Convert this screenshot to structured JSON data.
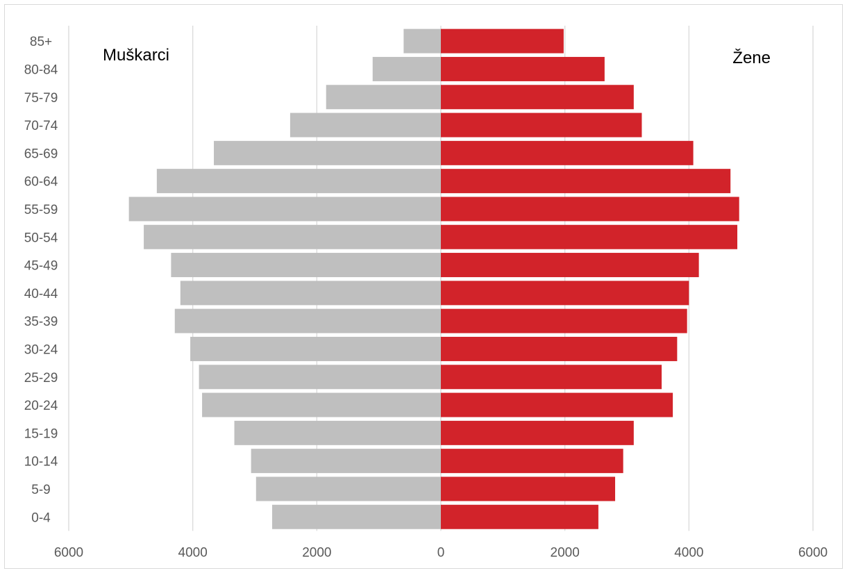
{
  "chart_data": {
    "type": "bar",
    "orientation": "horizontal",
    "subtype": "population-pyramid",
    "categories": [
      "85+",
      "80-84",
      "75-79",
      "70-74",
      "65-69",
      "60-64",
      "55-59",
      "50-54",
      "45-49",
      "40-44",
      "35-39",
      "30-24",
      "25-29",
      "20-24",
      "15-19",
      "10-14",
      "5-9",
      "0-4"
    ],
    "series": [
      {
        "name": "Muškarci",
        "side": "left",
        "color": "#bfbfbf",
        "values": [
          600,
          1100,
          1850,
          2430,
          3660,
          4580,
          5030,
          4790,
          4350,
          4200,
          4290,
          4040,
          3900,
          3850,
          3330,
          3060,
          2980,
          2720
        ]
      },
      {
        "name": "Žene",
        "side": "right",
        "color": "#d2232a",
        "values": [
          1980,
          2640,
          3110,
          3240,
          4070,
          4670,
          4810,
          4780,
          4160,
          4000,
          3970,
          3810,
          3560,
          3740,
          3110,
          2940,
          2810,
          2540
        ]
      }
    ],
    "xticks": [
      "6000",
      "4000",
      "2000",
      "0",
      "2000",
      "4000",
      "6000"
    ],
    "xlim": [
      -6000,
      6000
    ],
    "grid": "vertical",
    "xlabel": "",
    "ylabel": "",
    "title": ""
  }
}
